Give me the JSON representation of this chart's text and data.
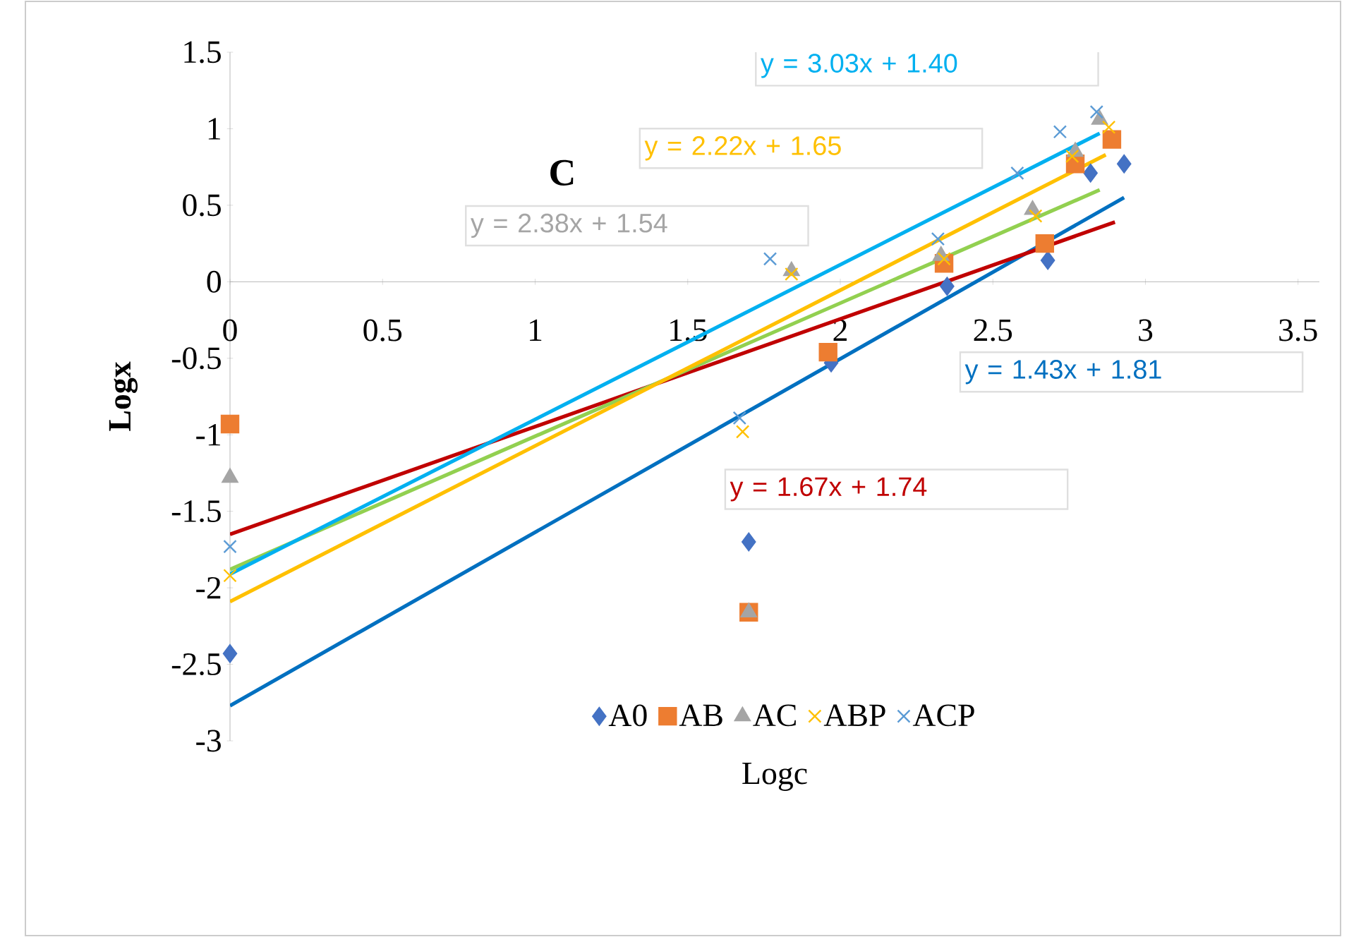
{
  "chart_data": {
    "type": "scatter",
    "xlabel": "Logc",
    "ylabel": "Logx",
    "xlim": [
      0,
      3.57
    ],
    "ylim": [
      -3,
      1.5
    ],
    "xticks": [
      0,
      0.5,
      1,
      1.5,
      2,
      2.5,
      3,
      3.5
    ],
    "yticks": [
      -3,
      -2.5,
      -2,
      -1.5,
      -1,
      -0.5,
      0,
      0.5,
      1,
      1.5
    ],
    "grid": false,
    "legend": "bottom",
    "series": [
      {
        "name": "A0",
        "color": "#4472c4",
        "marker": "diamond",
        "x": [
          0,
          1.7,
          1.97,
          2.35,
          2.68,
          2.82,
          2.93
        ],
        "values": [
          -2.43,
          -1.7,
          -0.53,
          -0.03,
          0.14,
          0.71,
          0.77
        ]
      },
      {
        "name": "AB",
        "color": "#ed7d31",
        "marker": "square",
        "x": [
          0,
          1.7,
          1.96,
          2.34,
          2.67,
          2.77,
          2.89
        ],
        "values": [
          -0.93,
          -2.16,
          -0.46,
          0.12,
          0.25,
          0.77,
          0.93
        ]
      },
      {
        "name": "AC",
        "color": "#a5a5a5",
        "marker": "triangle",
        "x": [
          0,
          1.7,
          1.84,
          2.33,
          2.63,
          2.77,
          2.85
        ],
        "values": [
          -1.28,
          -2.16,
          0.07,
          0.17,
          0.47,
          0.85,
          1.06
        ]
      },
      {
        "name": "ABP",
        "color": "#ffc000",
        "marker": "cross",
        "x": [
          0,
          1.68,
          1.84,
          2.34,
          2.64,
          2.76,
          2.88
        ],
        "values": [
          -1.92,
          -0.98,
          0.05,
          0.15,
          0.43,
          0.82,
          1.01
        ]
      },
      {
        "name": "ACP",
        "color": "#5b9bd5",
        "marker": "cross",
        "x": [
          0,
          1.67,
          1.77,
          2.32,
          2.58,
          2.72,
          2.84
        ],
        "values": [
          -1.73,
          -0.89,
          0.15,
          0.28,
          0.71,
          0.98,
          1.11
        ]
      },
      {
        "type": "line",
        "color": "#0070c0",
        "marker": "none",
        "x": [
          0,
          2.93
        ],
        "values": [
          -2.77,
          0.55
        ]
      },
      {
        "type": "line",
        "color": "#c00000",
        "marker": "none",
        "x": [
          0,
          2.9
        ],
        "values": [
          -1.65,
          0.39
        ]
      },
      {
        "type": "line",
        "color": "#92d050",
        "marker": "none",
        "x": [
          0,
          2.85
        ],
        "values": [
          -1.88,
          0.6
        ]
      },
      {
        "type": "line",
        "color": "#ffc000",
        "marker": "none",
        "x": [
          0,
          2.87
        ],
        "values": [
          -2.09,
          0.83
        ]
      },
      {
        "type": "line",
        "color": "#00b0f0",
        "marker": "none",
        "x": [
          0,
          2.85
        ],
        "values": [
          -1.91,
          0.97
        ]
      }
    ],
    "annotations": [
      "C",
      "y = 3.03x + 1.40",
      "y = 2.22x + 1.65",
      "y = 2.38x + 1.54",
      "y = 1.43x + 1.81",
      "y = 1.67x + 1.74"
    ]
  }
}
